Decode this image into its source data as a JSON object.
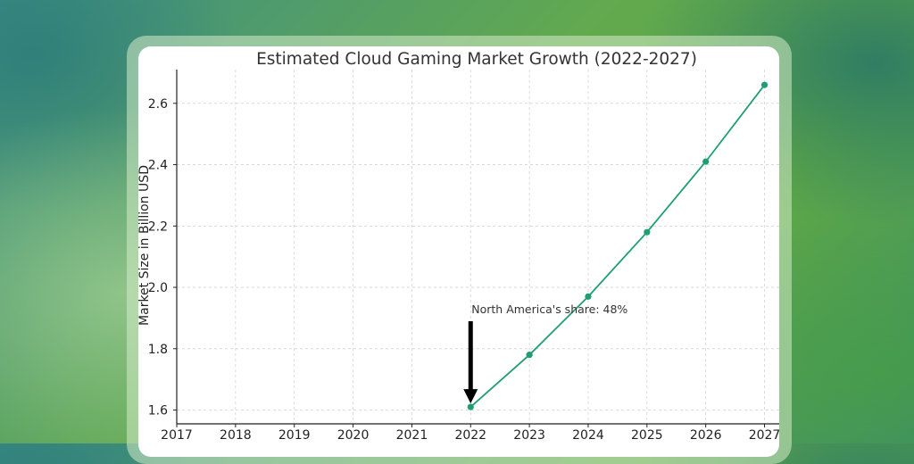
{
  "chart_data": {
    "type": "line",
    "title": "Estimated Cloud Gaming Market Growth (2022-2027)",
    "xlabel": "",
    "ylabel": "Market Size in Billion USD",
    "x_ticks": [
      "2017",
      "2018",
      "2019",
      "2020",
      "2021",
      "2022",
      "2023",
      "2024",
      "2025",
      "2026",
      "2027"
    ],
    "y_ticks": [
      "1.6",
      "1.8",
      "2.0",
      "2.2",
      "2.4",
      "2.6"
    ],
    "xlim": [
      2017,
      2027.25
    ],
    "ylim": [
      1.555,
      2.71
    ],
    "grid": true,
    "series": [
      {
        "x": [
          2022,
          2023,
          2024,
          2025,
          2026,
          2027
        ],
        "y": [
          1.61,
          1.78,
          1.97,
          2.18,
          2.41,
          2.66
        ],
        "color": "#1f9e74"
      }
    ],
    "annotation": {
      "text": "North America's share: 48%",
      "arrow_color": "#000000"
    }
  }
}
